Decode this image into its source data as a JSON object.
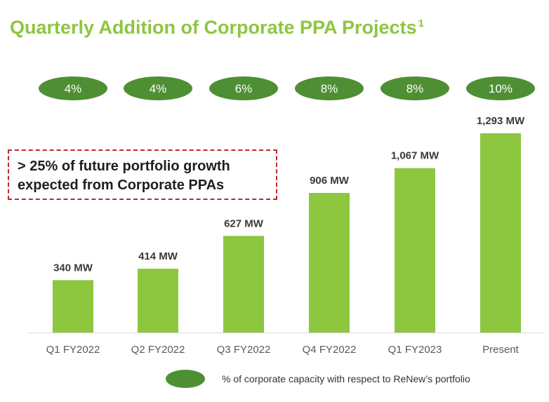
{
  "title": {
    "text": "Quarterly Addition of Corporate PPA Projects",
    "footnote_mark": "1"
  },
  "callout": {
    "line1": "> 25% of future portfolio growth",
    "line2": "expected from Corporate PPAs"
  },
  "legend": {
    "label": "% of corporate capacity with respect to ReNew’s portfolio",
    "marker_color": "#4f8f34"
  },
  "colors": {
    "title": "#8dc63f",
    "bar": "#8dc63f",
    "pill": "#4f8f34",
    "callout_border": "#c0282d"
  },
  "chart_data": {
    "type": "bar",
    "categories": [
      "Q1 FY2022",
      "Q2 FY2022",
      "Q3 FY2022",
      "Q4 FY2022",
      "Q1 FY2023",
      "Present"
    ],
    "values": [
      340,
      414,
      627,
      906,
      1067,
      1293
    ],
    "value_labels": [
      "340 MW",
      "414 MW",
      "627 MW",
      "906 MW",
      "1,067 MW",
      "1,293 MW"
    ],
    "unit": "MW",
    "percent_share": [
      4,
      4,
      6,
      8,
      8,
      10
    ],
    "percent_labels": [
      "4%",
      "4%",
      "6%",
      "8%",
      "8%",
      "10%"
    ],
    "xlabel": "",
    "ylabel": "",
    "ylim": [
      0,
      1293
    ],
    "grid": false
  }
}
